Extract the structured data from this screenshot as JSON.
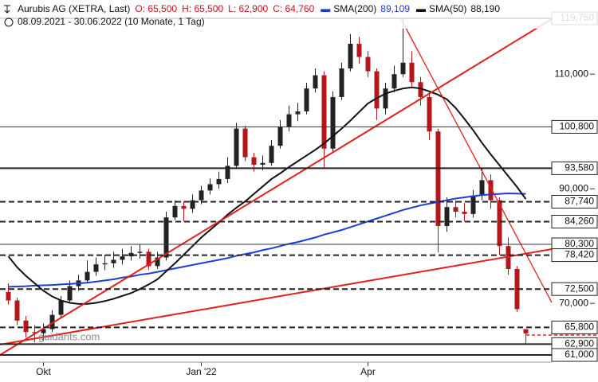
{
  "header": {
    "title": "Aurubis AG (XETRA, Last)",
    "ohlc": [
      "O: 65,500",
      "H: 65,500",
      "L: 62,900",
      "C: 64,760"
    ],
    "range": "08.09.2021 - 30.06.2022 (10 Monate, 1 Tag)",
    "watermark": "guidants.com"
  },
  "chart_data": {
    "type": "candlestick",
    "categories": [
      null,
      null,
      null,
      null,
      "Okt",
      null,
      null,
      null,
      null,
      null,
      null,
      null,
      null,
      null,
      null,
      null,
      null,
      null,
      null,
      null,
      null,
      null,
      "Jan '22",
      null,
      null,
      null,
      null,
      null,
      null,
      null,
      null,
      null,
      null,
      null,
      null,
      null,
      null,
      null,
      null,
      null,
      null,
      "Apr",
      null,
      null,
      null,
      null,
      null,
      null,
      null,
      null,
      null,
      null,
      null,
      null,
      null,
      null,
      null,
      null,
      null,
      null
    ],
    "open": [
      72,
      70.5,
      67,
      65,
      64.8,
      65.5,
      68,
      70.5,
      73,
      74,
      75.5,
      76.8,
      77,
      77.6,
      78.2,
      78.8,
      79,
      76.5,
      78,
      85,
      87,
      86.5,
      88,
      89.7,
      90.8,
      91.7,
      94,
      100.5,
      95.5,
      94.2,
      94.5,
      97.5,
      100.8,
      103,
      103.5,
      107.5,
      109.8,
      97,
      106,
      111,
      115.3,
      113,
      110.5,
      104,
      107.5,
      110,
      112,
      108.6,
      106,
      100,
      83.5,
      86.8,
      86,
      85.6,
      88.8,
      91.5,
      88,
      80,
      76,
      65.5
    ],
    "high": [
      73.5,
      71,
      67.8,
      66.2,
      66.5,
      68.8,
      71.3,
      74,
      75,
      77.5,
      78,
      78.5,
      79,
      79.5,
      80,
      80.3,
      79.5,
      79,
      86,
      88,
      87.8,
      89,
      90.5,
      91.8,
      93,
      95.5,
      101.5,
      101,
      96.3,
      95.8,
      98.5,
      102,
      104.5,
      105,
      108.5,
      111,
      110.5,
      107,
      112,
      117,
      116.5,
      114,
      111,
      108.5,
      111.5,
      119.75,
      114,
      109.5,
      106.8,
      100.5,
      88.5,
      88,
      87.5,
      89.8,
      93.5,
      92.5,
      88.5,
      81.5,
      76.5,
      65.5
    ],
    "low": [
      69.8,
      66.2,
      64,
      63.2,
      63.5,
      65,
      67.5,
      70,
      72.2,
      73.5,
      74.8,
      75.8,
      76.2,
      76.8,
      77.5,
      77.8,
      75.8,
      76,
      77.5,
      84.5,
      84.3,
      85.8,
      87.3,
      89,
      90,
      91,
      93.5,
      94.8,
      93,
      93.2,
      94,
      97,
      100,
      101.8,
      103,
      106.8,
      93.6,
      96.5,
      105.5,
      110.5,
      111.8,
      109.5,
      102,
      103,
      106.8,
      109.5,
      107.5,
      104.5,
      98.5,
      78.9,
      82.5,
      85,
      84.3,
      85,
      88,
      86.5,
      78.5,
      75,
      68.5,
      62.9
    ],
    "close": [
      70.5,
      67,
      65,
      64.8,
      65.5,
      68,
      70.5,
      73,
      74,
      75.5,
      76.8,
      77,
      77.6,
      78.2,
      78.8,
      79,
      76.5,
      78,
      85,
      87,
      86.5,
      88,
      89.7,
      90.8,
      91.7,
      94,
      100.5,
      95.5,
      94.2,
      94.5,
      97.5,
      100.8,
      103,
      103.5,
      107.5,
      109.8,
      97,
      106,
      111,
      115.3,
      113,
      110.5,
      104,
      107.5,
      110,
      112,
      108.6,
      106,
      100,
      83.5,
      86.8,
      86,
      85.6,
      88.8,
      91.5,
      88,
      80,
      76,
      69,
      64.76
    ],
    "up_color": "#222222",
    "down_color": "#b3161b",
    "series": [
      {
        "name": "SMA(200)",
        "color": "#1c3cd6",
        "legend_value": "89,109",
        "values": [
          72.9,
          72.95,
          73,
          73.1,
          73.15,
          73.2,
          73.3,
          73.4,
          73.5,
          73.6,
          73.8,
          74,
          74.2,
          74.5,
          74.7,
          75,
          75.2,
          75.5,
          75.8,
          76.1,
          76.4,
          76.7,
          77,
          77.3,
          77.6,
          77.9,
          78.3,
          78.6,
          78.9,
          79.3,
          79.6,
          80,
          80.4,
          80.7,
          81.1,
          81.5,
          82,
          82.4,
          82.8,
          83.3,
          83.8,
          84.3,
          84.8,
          85.3,
          85.8,
          86.3,
          86.7,
          87.1,
          87.4,
          87.7,
          88,
          88.3,
          88.5,
          88.7,
          88.9,
          89,
          89.1,
          89.2,
          89.15,
          89.109
        ]
      },
      {
        "name": "SMA(50)",
        "color": "#111111",
        "legend_value": "88,190",
        "values": [
          78.2,
          76.3,
          74.8,
          73.5,
          72.2,
          71.2,
          70.5,
          70.1,
          69.9,
          69.9,
          70.1,
          70.4,
          70.8,
          71.3,
          71.8,
          72.5,
          73.3,
          74.2,
          75.6,
          77,
          78.5,
          80,
          81.5,
          82.8,
          84.1,
          85.5,
          86.7,
          87.8,
          89.1,
          90.4,
          91.7,
          92.7,
          93.8,
          94.8,
          95.8,
          96.8,
          97.9,
          99.2,
          100.5,
          101.9,
          103.4,
          104.9,
          105.8,
          106.6,
          107.1,
          107.5,
          107.7,
          107.5,
          107,
          106.4,
          105.6,
          104.1,
          102.2,
          100.2,
          98,
          96,
          94.1,
          92.2,
          90.3,
          88.19
        ]
      }
    ],
    "levels": [
      {
        "value": 119.75,
        "label": "119,750",
        "style": "solid"
      },
      {
        "value": 100.8,
        "label": "100,800",
        "style": "thin"
      },
      {
        "value": 93.58,
        "label": "93,580",
        "style": "solid"
      },
      {
        "value": 87.74,
        "label": "87,740",
        "style": "dashed"
      },
      {
        "value": 84.26,
        "label": "84,260",
        "style": "dashed"
      },
      {
        "value": 80.3,
        "label": "80,300",
        "style": "thin"
      },
      {
        "value": 78.42,
        "label": "78,420",
        "style": "dashed"
      },
      {
        "value": 72.5,
        "label": "72,500",
        "style": "dashed"
      },
      {
        "value": 65.8,
        "label": "65,800",
        "style": "dashed"
      },
      {
        "value": 62.9,
        "label": "62,900",
        "style": "solid"
      },
      {
        "value": 61,
        "label": "61,000",
        "style": "solid"
      }
    ],
    "ylim": [
      59.75,
      122.94
    ],
    "yticks": [
      {
        "value": 70,
        "label": "70,000"
      },
      {
        "value": 90,
        "label": "90,000"
      },
      {
        "value": 110,
        "label": "110,000"
      }
    ]
  }
}
